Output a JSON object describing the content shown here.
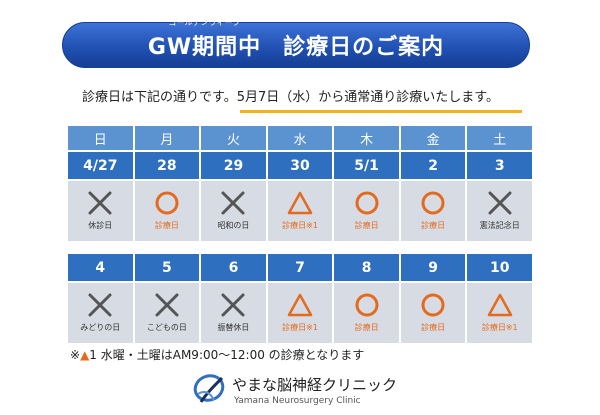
{
  "title": {
    "ruby": "ゴールデンウィーク",
    "prefix": "GW期間中",
    "main": "診療日のご案内"
  },
  "intro": {
    "before": "診療日は下記の通りです。",
    "highlight": "5月7日（水）から通常通り診療いたします。"
  },
  "weekdays": [
    "日",
    "月",
    "火",
    "水",
    "木",
    "金",
    "土"
  ],
  "weeks": [
    {
      "dates": [
        "4/27",
        "28",
        "29",
        "30",
        "5/1",
        "2",
        "3"
      ],
      "days": [
        {
          "mark": "cross",
          "caption": "休診日"
        },
        {
          "mark": "circle",
          "caption": "診療日"
        },
        {
          "mark": "cross",
          "caption": "昭和の日"
        },
        {
          "mark": "triangle",
          "caption": "診療日※1"
        },
        {
          "mark": "circle",
          "caption": "診療日"
        },
        {
          "mark": "circle",
          "caption": "診療日"
        },
        {
          "mark": "cross",
          "caption": "憲法記念日"
        }
      ]
    },
    {
      "dates": [
        "4",
        "5",
        "6",
        "7",
        "8",
        "9",
        "10"
      ],
      "days": [
        {
          "mark": "cross",
          "caption": "みどりの日"
        },
        {
          "mark": "cross",
          "caption": "こどもの日"
        },
        {
          "mark": "cross",
          "caption": "振替休日"
        },
        {
          "mark": "triangle",
          "caption": "診療日※1"
        },
        {
          "mark": "circle",
          "caption": "診療日"
        },
        {
          "mark": "circle",
          "caption": "診療日"
        },
        {
          "mark": "triangle",
          "caption": "診療日※1"
        }
      ]
    }
  ],
  "note": {
    "prefix": "※",
    "symbol": "▲",
    "text": "1 水曜・土曜はAM9:00～12:00 の診療となります"
  },
  "clinic": {
    "name": "やまな脳神経クリニック",
    "english": "Yamana Neurosurgery Clinic"
  },
  "colors": {
    "open": "#e46b1e",
    "closed": "#555555",
    "header": "#5b93d1",
    "date": "#2f6fc0",
    "cell": "#d7dbe3",
    "underline": "#f2b21a"
  }
}
